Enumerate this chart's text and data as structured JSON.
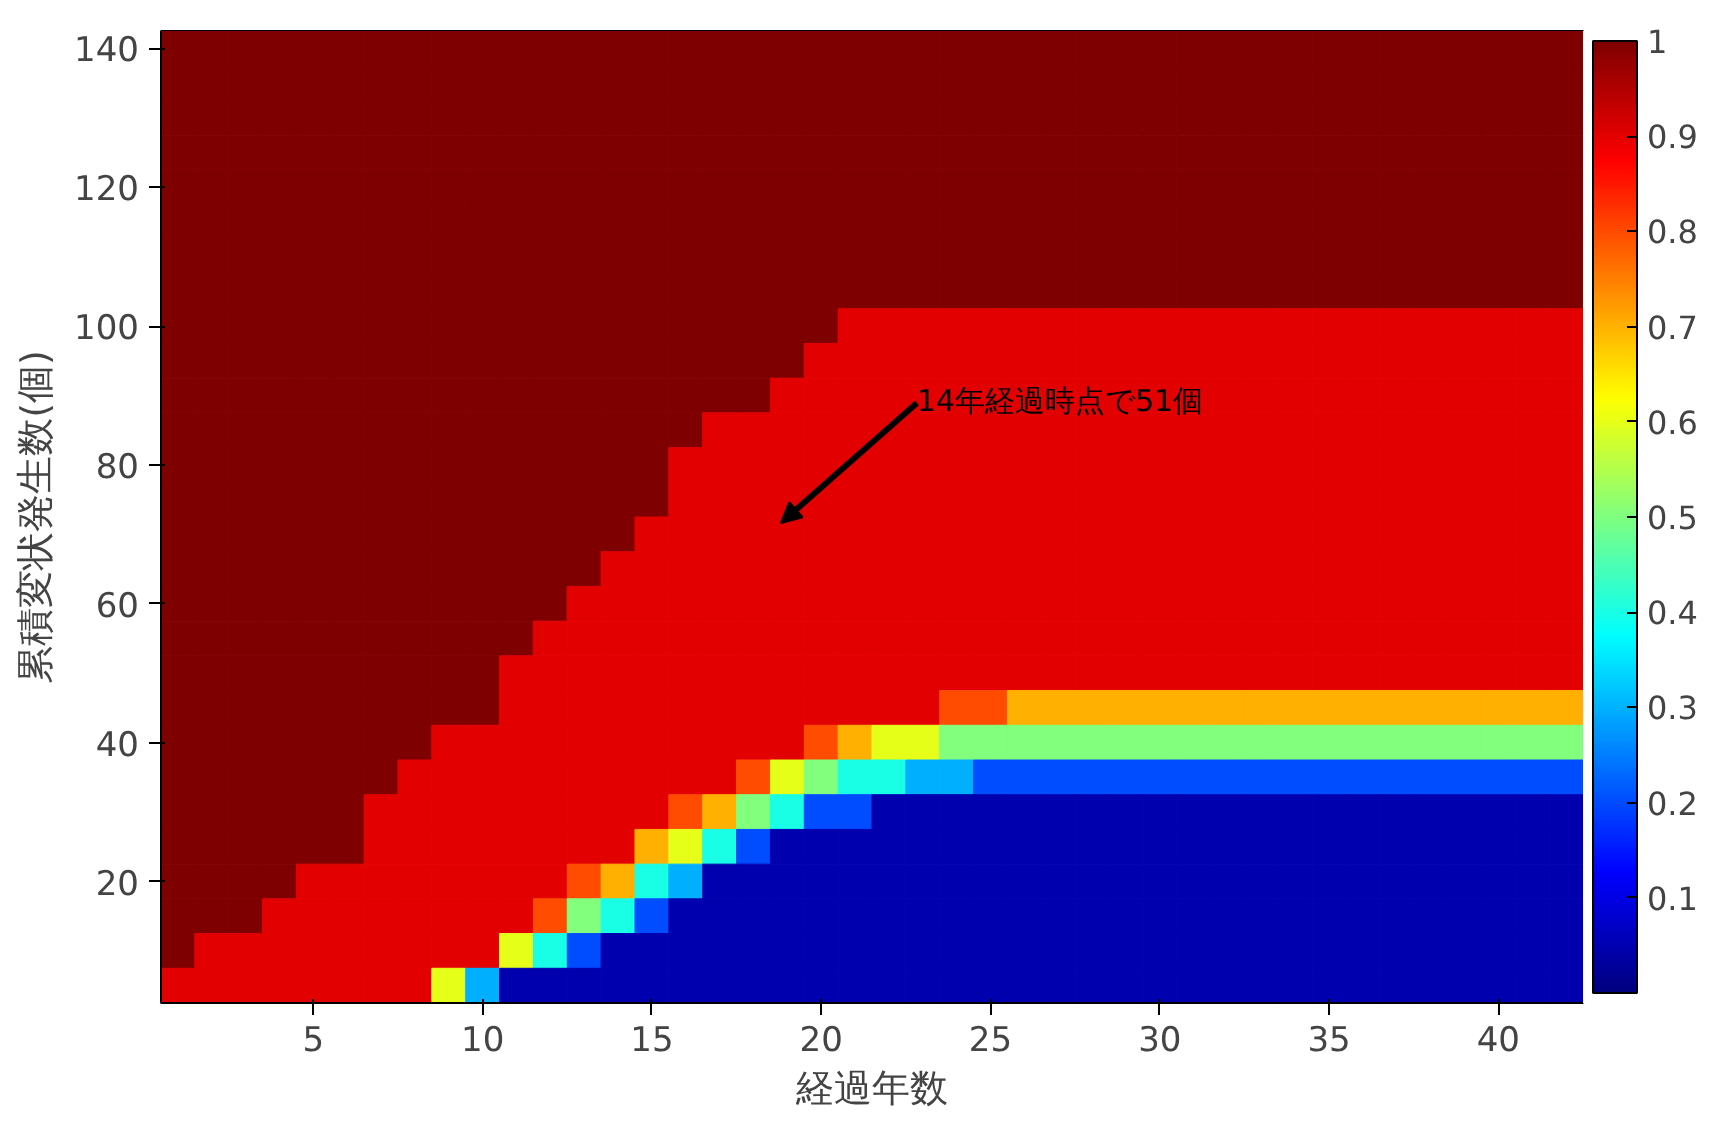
{
  "chart_data": {
    "type": "heatmap",
    "xlabel": "経過年数",
    "ylabel": "累積変状発生数(個)",
    "categories": [
      null,
      null,
      null,
      null,
      "5",
      null,
      null,
      null,
      null,
      "10",
      null,
      null,
      null,
      null,
      "15",
      null,
      null,
      null,
      null,
      "20",
      null,
      null,
      null,
      null,
      "25",
      null,
      null,
      null,
      null,
      "30",
      null,
      null,
      null,
      null,
      "35",
      null,
      null,
      null,
      null,
      "40",
      null,
      null
    ],
    "y_categories": [
      "140",
      null,
      null,
      null,
      "120",
      null,
      null,
      null,
      "100",
      null,
      null,
      null,
      "80",
      null,
      null,
      null,
      "60",
      null,
      null,
      null,
      "40",
      null,
      null,
      null,
      "20",
      null,
      null,
      null
    ],
    "cells": [
      [
        1,
        1,
        1,
        1,
        1,
        1,
        1,
        1,
        1,
        1,
        1,
        1,
        1,
        1,
        1,
        1,
        1,
        1,
        1,
        1,
        1,
        1,
        1,
        1,
        1,
        1,
        1,
        1,
        1,
        1,
        1,
        1,
        1,
        1,
        1,
        1,
        1,
        1,
        1,
        1,
        1,
        1
      ],
      [
        1,
        1,
        1,
        1,
        1,
        1,
        1,
        1,
        1,
        1,
        1,
        1,
        1,
        1,
        1,
        1,
        1,
        1,
        1,
        1,
        1,
        1,
        1,
        1,
        1,
        1,
        1,
        1,
        1,
        1,
        1,
        1,
        1,
        1,
        1,
        1,
        1,
        1,
        1,
        1,
        1,
        1
      ],
      [
        1,
        1,
        1,
        1,
        1,
        1,
        1,
        1,
        1,
        1,
        1,
        1,
        1,
        1,
        1,
        1,
        1,
        1,
        1,
        1,
        1,
        1,
        1,
        1,
        1,
        1,
        1,
        1,
        1,
        1,
        1,
        1,
        1,
        1,
        1,
        1,
        1,
        1,
        1,
        1,
        1,
        1
      ],
      [
        1,
        1,
        1,
        1,
        1,
        1,
        1,
        1,
        1,
        1,
        1,
        1,
        1,
        1,
        1,
        1,
        1,
        1,
        1,
        1,
        1,
        1,
        1,
        1,
        1,
        1,
        1,
        1,
        1,
        1,
        1,
        1,
        1,
        1,
        1,
        1,
        1,
        1,
        1,
        1,
        1,
        1
      ],
      [
        1,
        1,
        1,
        1,
        1,
        1,
        1,
        1,
        1,
        1,
        1,
        1,
        1,
        1,
        1,
        1,
        1,
        1,
        1,
        1,
        1,
        1,
        1,
        1,
        1,
        1,
        1,
        1,
        1,
        1,
        1,
        1,
        1,
        1,
        1,
        1,
        1,
        1,
        1,
        1,
        1,
        1
      ],
      [
        1,
        1,
        1,
        1,
        1,
        1,
        1,
        1,
        1,
        1,
        1,
        1,
        1,
        1,
        1,
        1,
        1,
        1,
        1,
        1,
        1,
        1,
        1,
        1,
        1,
        1,
        1,
        1,
        1,
        1,
        1,
        1,
        1,
        1,
        1,
        1,
        1,
        1,
        1,
        1,
        1,
        1
      ],
      [
        1,
        1,
        1,
        1,
        1,
        1,
        1,
        1,
        1,
        1,
        1,
        1,
        1,
        1,
        1,
        1,
        1,
        1,
        1,
        1,
        1,
        1,
        1,
        1,
        1,
        1,
        1,
        1,
        1,
        1,
        1,
        1,
        1,
        1,
        1,
        1,
        1,
        1,
        1,
        1,
        1,
        1
      ],
      [
        1,
        1,
        1,
        1,
        1,
        1,
        1,
        1,
        1,
        1,
        1,
        1,
        1,
        1,
        1,
        1,
        1,
        1,
        1,
        1,
        1,
        1,
        1,
        1,
        1,
        1,
        1,
        1,
        1,
        1,
        1,
        1,
        1,
        1,
        1,
        1,
        1,
        1,
        1,
        1,
        1,
        1
      ],
      [
        1,
        1,
        1,
        1,
        1,
        1,
        1,
        1,
        1,
        1,
        1,
        1,
        1,
        1,
        1,
        1,
        1,
        1,
        1,
        1,
        0.9,
        0.9,
        0.9,
        0.9,
        0.9,
        0.9,
        0.9,
        0.9,
        0.9,
        0.9,
        0.9,
        0.9,
        0.9,
        0.9,
        0.9,
        0.9,
        0.9,
        0.9,
        0.9,
        0.9,
        0.9,
        0.9
      ],
      [
        1,
        1,
        1,
        1,
        1,
        1,
        1,
        1,
        1,
        1,
        1,
        1,
        1,
        1,
        1,
        1,
        1,
        1,
        1,
        0.9,
        0.9,
        0.9,
        0.9,
        0.9,
        0.9,
        0.9,
        0.9,
        0.9,
        0.9,
        0.9,
        0.9,
        0.9,
        0.9,
        0.9,
        0.9,
        0.9,
        0.9,
        0.9,
        0.9,
        0.9,
        0.9,
        0.9
      ],
      [
        1,
        1,
        1,
        1,
        1,
        1,
        1,
        1,
        1,
        1,
        1,
        1,
        1,
        1,
        1,
        1,
        1,
        1,
        0.9,
        0.9,
        0.9,
        0.9,
        0.9,
        0.9,
        0.9,
        0.9,
        0.9,
        0.9,
        0.9,
        0.9,
        0.9,
        0.9,
        0.9,
        0.9,
        0.9,
        0.9,
        0.9,
        0.9,
        0.9,
        0.9,
        0.9,
        0.9
      ],
      [
        1,
        1,
        1,
        1,
        1,
        1,
        1,
        1,
        1,
        1,
        1,
        1,
        1,
        1,
        1,
        1,
        0.9,
        0.9,
        0.9,
        0.9,
        0.9,
        0.9,
        0.9,
        0.9,
        0.9,
        0.9,
        0.9,
        0.9,
        0.9,
        0.9,
        0.9,
        0.9,
        0.9,
        0.9,
        0.9,
        0.9,
        0.9,
        0.9,
        0.9,
        0.9,
        0.9,
        0.9
      ],
      [
        1,
        1,
        1,
        1,
        1,
        1,
        1,
        1,
        1,
        1,
        1,
        1,
        1,
        1,
        1,
        0.9,
        0.9,
        0.9,
        0.9,
        0.9,
        0.9,
        0.9,
        0.9,
        0.9,
        0.9,
        0.9,
        0.9,
        0.9,
        0.9,
        0.9,
        0.9,
        0.9,
        0.9,
        0.9,
        0.9,
        0.9,
        0.9,
        0.9,
        0.9,
        0.9,
        0.9,
        0.9
      ],
      [
        1,
        1,
        1,
        1,
        1,
        1,
        1,
        1,
        1,
        1,
        1,
        1,
        1,
        1,
        1,
        0.9,
        0.9,
        0.9,
        0.9,
        0.9,
        0.9,
        0.9,
        0.9,
        0.9,
        0.9,
        0.9,
        0.9,
        0.9,
        0.9,
        0.9,
        0.9,
        0.9,
        0.9,
        0.9,
        0.9,
        0.9,
        0.9,
        0.9,
        0.9,
        0.9,
        0.9,
        0.9
      ],
      [
        1,
        1,
        1,
        1,
        1,
        1,
        1,
        1,
        1,
        1,
        1,
        1,
        1,
        1,
        0.9,
        0.9,
        0.9,
        0.9,
        0.9,
        0.9,
        0.9,
        0.9,
        0.9,
        0.9,
        0.9,
        0.9,
        0.9,
        0.9,
        0.9,
        0.9,
        0.9,
        0.9,
        0.9,
        0.9,
        0.9,
        0.9,
        0.9,
        0.9,
        0.9,
        0.9,
        0.9,
        0.9
      ],
      [
        1,
        1,
        1,
        1,
        1,
        1,
        1,
        1,
        1,
        1,
        1,
        1,
        1,
        0.9,
        0.9,
        0.9,
        0.9,
        0.9,
        0.9,
        0.9,
        0.9,
        0.9,
        0.9,
        0.9,
        0.9,
        0.9,
        0.9,
        0.9,
        0.9,
        0.9,
        0.9,
        0.9,
        0.9,
        0.9,
        0.9,
        0.9,
        0.9,
        0.9,
        0.9,
        0.9,
        0.9,
        0.9
      ],
      [
        1,
        1,
        1,
        1,
        1,
        1,
        1,
        1,
        1,
        1,
        1,
        1,
        0.9,
        0.9,
        0.9,
        0.9,
        0.9,
        0.9,
        0.9,
        0.9,
        0.9,
        0.9,
        0.9,
        0.9,
        0.9,
        0.9,
        0.9,
        0.9,
        0.9,
        0.9,
        0.9,
        0.9,
        0.9,
        0.9,
        0.9,
        0.9,
        0.9,
        0.9,
        0.9,
        0.9,
        0.9,
        0.9
      ],
      [
        1,
        1,
        1,
        1,
        1,
        1,
        1,
        1,
        1,
        1,
        1,
        0.9,
        0.9,
        0.9,
        0.9,
        0.9,
        0.9,
        0.9,
        0.9,
        0.9,
        0.9,
        0.9,
        0.9,
        0.9,
        0.9,
        0.9,
        0.9,
        0.9,
        0.9,
        0.9,
        0.9,
        0.9,
        0.9,
        0.9,
        0.9,
        0.9,
        0.9,
        0.9,
        0.9,
        0.9,
        0.9,
        0.9
      ],
      [
        1,
        1,
        1,
        1,
        1,
        1,
        1,
        1,
        1,
        1,
        0.9,
        0.9,
        0.9,
        0.9,
        0.9,
        0.9,
        0.9,
        0.9,
        0.9,
        0.9,
        0.9,
        0.9,
        0.9,
        0.9,
        0.9,
        0.9,
        0.9,
        0.9,
        0.9,
        0.9,
        0.9,
        0.9,
        0.9,
        0.9,
        0.9,
        0.9,
        0.9,
        0.9,
        0.9,
        0.9,
        0.9,
        0.9
      ],
      [
        1,
        1,
        1,
        1,
        1,
        1,
        1,
        1,
        1,
        1,
        0.9,
        0.9,
        0.9,
        0.9,
        0.9,
        0.9,
        0.9,
        0.9,
        0.9,
        0.9,
        0.9,
        0.9,
        0.9,
        0.8,
        0.8,
        0.7,
        0.7,
        0.7,
        0.7,
        0.7,
        0.7,
        0.7,
        0.7,
        0.7,
        0.7,
        0.7,
        0.7,
        0.7,
        0.7,
        0.7,
        0.7,
        0.7
      ],
      [
        1,
        1,
        1,
        1,
        1,
        1,
        1,
        1,
        0.9,
        0.9,
        0.9,
        0.9,
        0.9,
        0.9,
        0.9,
        0.9,
        0.9,
        0.9,
        0.9,
        0.8,
        0.7,
        0.6,
        0.6,
        0.5,
        0.5,
        0.5,
        0.5,
        0.5,
        0.5,
        0.5,
        0.5,
        0.5,
        0.5,
        0.5,
        0.5,
        0.5,
        0.5,
        0.5,
        0.5,
        0.5,
        0.5,
        0.5
      ],
      [
        1,
        1,
        1,
        1,
        1,
        1,
        1,
        0.9,
        0.9,
        0.9,
        0.9,
        0.9,
        0.9,
        0.9,
        0.9,
        0.9,
        0.9,
        0.8,
        0.6,
        0.5,
        0.4,
        0.4,
        0.3,
        0.3,
        0.2,
        0.2,
        0.2,
        0.2,
        0.2,
        0.2,
        0.2,
        0.2,
        0.2,
        0.2,
        0.2,
        0.2,
        0.2,
        0.2,
        0.2,
        0.2,
        0.2,
        0.2
      ],
      [
        1,
        1,
        1,
        1,
        1,
        1,
        0.9,
        0.9,
        0.9,
        0.9,
        0.9,
        0.9,
        0.9,
        0.9,
        0.9,
        0.8,
        0.7,
        0.5,
        0.4,
        0.2,
        0.2,
        0.05,
        0.05,
        0.05,
        0.05,
        0.05,
        0.05,
        0.05,
        0.05,
        0.05,
        0.05,
        0.05,
        0.05,
        0.05,
        0.05,
        0.05,
        0.05,
        0.05,
        0.05,
        0.05,
        0.05,
        0.05
      ],
      [
        1,
        1,
        1,
        1,
        1,
        1,
        0.9,
        0.9,
        0.9,
        0.9,
        0.9,
        0.9,
        0.9,
        0.9,
        0.7,
        0.6,
        0.4,
        0.2,
        0.05,
        0.05,
        0.05,
        0.05,
        0.05,
        0.05,
        0.05,
        0.05,
        0.05,
        0.05,
        0.05,
        0.05,
        0.05,
        0.05,
        0.05,
        0.05,
        0.05,
        0.05,
        0.05,
        0.05,
        0.05,
        0.05,
        0.05,
        0.05
      ],
      [
        1,
        1,
        1,
        1,
        0.9,
        0.9,
        0.9,
        0.9,
        0.9,
        0.9,
        0.9,
        0.9,
        0.8,
        0.7,
        0.4,
        0.3,
        0.05,
        0.05,
        0.05,
        0.05,
        0.05,
        0.05,
        0.05,
        0.05,
        0.05,
        0.05,
        0.05,
        0.05,
        0.05,
        0.05,
        0.05,
        0.05,
        0.05,
        0.05,
        0.05,
        0.05,
        0.05,
        0.05,
        0.05,
        0.05,
        0.05,
        0.05
      ],
      [
        1,
        1,
        1,
        0.9,
        0.9,
        0.9,
        0.9,
        0.9,
        0.9,
        0.9,
        0.9,
        0.8,
        0.5,
        0.4,
        0.2,
        0.05,
        0.05,
        0.05,
        0.05,
        0.05,
        0.05,
        0.05,
        0.05,
        0.05,
        0.05,
        0.05,
        0.05,
        0.05,
        0.05,
        0.05,
        0.05,
        0.05,
        0.05,
        0.05,
        0.05,
        0.05,
        0.05,
        0.05,
        0.05,
        0.05,
        0.05,
        0.05
      ],
      [
        1,
        0.9,
        0.9,
        0.9,
        0.9,
        0.9,
        0.9,
        0.9,
        0.9,
        0.9,
        0.6,
        0.4,
        0.2,
        0.05,
        0.05,
        0.05,
        0.05,
        0.05,
        0.05,
        0.05,
        0.05,
        0.05,
        0.05,
        0.05,
        0.05,
        0.05,
        0.05,
        0.05,
        0.05,
        0.05,
        0.05,
        0.05,
        0.05,
        0.05,
        0.05,
        0.05,
        0.05,
        0.05,
        0.05,
        0.05,
        0.05,
        0.05
      ],
      [
        0.9,
        0.9,
        0.9,
        0.9,
        0.9,
        0.9,
        0.9,
        0.9,
        0.6,
        0.3,
        0.05,
        0.05,
        0.05,
        0.05,
        0.05,
        0.05,
        0.05,
        0.05,
        0.05,
        0.05,
        0.05,
        0.05,
        0.05,
        0.05,
        0.05,
        0.05,
        0.05,
        0.05,
        0.05,
        0.05,
        0.05,
        0.05,
        0.05,
        0.05,
        0.05,
        0.05,
        0.05,
        0.05,
        0.05,
        0.05,
        0.05,
        0.05
      ]
    ],
    "clim": [
      0,
      1
    ],
    "cticks": [
      0.1,
      0.2,
      0.3,
      0.4,
      0.5,
      0.6,
      0.7,
      0.8,
      0.9,
      1
    ],
    "annotations": [
      "14年経過時点で51個"
    ]
  }
}
